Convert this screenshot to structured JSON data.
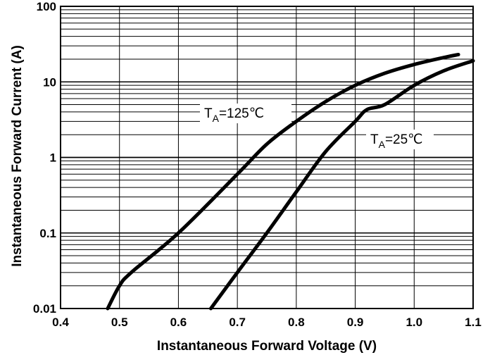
{
  "chart_data": {
    "type": "line",
    "xlabel": "Instantaneous Forward Voltage (V)",
    "ylabel": "Instantaneous Forward Current (A)",
    "xlim": [
      0.4,
      1.1
    ],
    "ylim": [
      0.01,
      100
    ],
    "yscale": "log",
    "grid": true,
    "x_ticks": [
      "0.4",
      "0.5",
      "0.6",
      "0.7",
      "0.8",
      "0.9",
      "1.0",
      "1.1"
    ],
    "y_ticks": [
      "0.01",
      "0.1",
      "1",
      "10",
      "100"
    ],
    "series": [
      {
        "label": {
          "main": "T",
          "sub": "A",
          "rest": "=125℃"
        },
        "color": "#000000",
        "points": [
          [
            0.48,
            0.01
          ],
          [
            0.5,
            0.02
          ],
          [
            0.52,
            0.03
          ],
          [
            0.6,
            0.1
          ],
          [
            0.7,
            0.6
          ],
          [
            0.75,
            1.5
          ],
          [
            0.8,
            3.0
          ],
          [
            0.85,
            5.5
          ],
          [
            0.9,
            9.0
          ],
          [
            0.95,
            13.0
          ],
          [
            1.0,
            17.0
          ],
          [
            1.05,
            21.0
          ],
          [
            1.075,
            23.0
          ]
        ]
      },
      {
        "label": {
          "main": "T",
          "sub": "A",
          "rest": "=25℃"
        },
        "color": "#000000",
        "points": [
          [
            0.655,
            0.01
          ],
          [
            0.7,
            0.03
          ],
          [
            0.75,
            0.1
          ],
          [
            0.8,
            0.35
          ],
          [
            0.85,
            1.2
          ],
          [
            0.9,
            3.0
          ],
          [
            0.92,
            4.3
          ],
          [
            0.95,
            5.0
          ],
          [
            1.0,
            9.0
          ],
          [
            1.05,
            14.0
          ],
          [
            1.1,
            19.0
          ]
        ]
      }
    ]
  }
}
